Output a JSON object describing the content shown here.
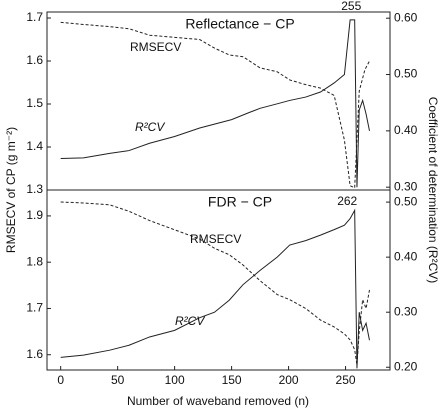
{
  "shared": {
    "xlabel": "Number of waveband removed (n)",
    "ylabel": "RMSECV of CP (g m⁻²)",
    "y2label": "Coefficient of determination (R²CV)"
  },
  "chart_data": [
    {
      "type": "line",
      "title": "Reflectance − CP",
      "xlim": [
        -12,
        289
      ],
      "ylim": [
        1.3,
        1.714
      ],
      "yticks": [
        1.3,
        1.4,
        1.5,
        1.6,
        1.7
      ],
      "y2lim": [
        0.295,
        0.611
      ],
      "y2ticks": [
        {
          "value": 0.3,
          "label": "0.30"
        },
        {
          "value": 0.4,
          "label": "0.40"
        },
        {
          "value": 0.5,
          "label": "0.50"
        },
        {
          "value": 0.6,
          "label": "0.60"
        }
      ],
      "annotations": [
        {
          "text": "255",
          "x": 255
        }
      ],
      "series": [
        {
          "name": "RMSECV",
          "color": "#222",
          "dash": true,
          "x": [
            0,
            20,
            43,
            60,
            78,
            100,
            122,
            135,
            148,
            160,
            175,
            190,
            201,
            215,
            228,
            240,
            249,
            254,
            258,
            262,
            267,
            271
          ],
          "values": [
            1.69,
            1.685,
            1.68,
            1.675,
            1.66,
            1.655,
            1.65,
            1.63,
            1.614,
            1.61,
            1.584,
            1.575,
            1.556,
            1.545,
            1.537,
            1.52,
            1.416,
            1.31,
            1.305,
            1.53,
            1.58,
            1.6
          ]
        },
        {
          "name": "R²CV",
          "color": "#222",
          "dash": false,
          "axis": "y2",
          "x": [
            0,
            20,
            43,
            60,
            78,
            100,
            122,
            150,
            166,
            175,
            190,
            201,
            215,
            228,
            240,
            249,
            254,
            258,
            260,
            262,
            265,
            268,
            271
          ],
          "values": [
            0.351,
            0.352,
            0.36,
            0.365,
            0.378,
            0.39,
            0.405,
            0.42,
            0.433,
            0.44,
            0.448,
            0.454,
            0.46,
            0.469,
            0.485,
            0.5,
            0.597,
            0.597,
            0.3,
            0.437,
            0.454,
            0.43,
            0.4
          ]
        }
      ]
    },
    {
      "type": "line",
      "title": "FDR − CP",
      "xlim": [
        -12,
        289
      ],
      "ylim": [
        1.567,
        1.956
      ],
      "yticks": [
        1.6,
        1.7,
        1.8,
        1.9
      ],
      "y2lim": [
        0.195,
        0.522
      ],
      "y2ticks": [
        {
          "value": 0.2,
          "label": "0.20"
        },
        {
          "value": 0.3,
          "label": "0.30"
        },
        {
          "value": 0.4,
          "label": "0.40"
        },
        {
          "value": 0.5,
          "label": "0.50"
        }
      ],
      "xticks": [
        0,
        50,
        100,
        150,
        200,
        250
      ],
      "annotations": [
        {
          "text": "262",
          "x": 262
        }
      ],
      "series": [
        {
          "name": "RMSECV",
          "color": "#222",
          "dash": true,
          "x": [
            0,
            20,
            43,
            60,
            78,
            100,
            122,
            135,
            148,
            160,
            175,
            190,
            201,
            215,
            228,
            240,
            249,
            254,
            258,
            260,
            262,
            265,
            268,
            271
          ],
          "values": [
            1.93,
            1.928,
            1.924,
            1.91,
            1.89,
            1.87,
            1.85,
            1.83,
            1.816,
            1.794,
            1.76,
            1.73,
            1.719,
            1.7,
            1.675,
            1.66,
            1.645,
            1.632,
            1.611,
            1.578,
            1.65,
            1.719,
            1.7,
            1.74
          ]
        },
        {
          "name": "R²CV",
          "color": "#222",
          "dash": false,
          "axis": "y2",
          "x": [
            0,
            20,
            43,
            60,
            78,
            100,
            122,
            135,
            148,
            160,
            175,
            190,
            201,
            215,
            228,
            240,
            249,
            254,
            258,
            260,
            262,
            265,
            268,
            271
          ],
          "values": [
            0.218,
            0.222,
            0.231,
            0.24,
            0.255,
            0.267,
            0.29,
            0.3,
            0.322,
            0.35,
            0.376,
            0.4,
            0.422,
            0.43,
            0.44,
            0.45,
            0.458,
            0.47,
            0.485,
            0.198,
            0.3,
            0.267,
            0.28,
            0.249
          ]
        }
      ]
    }
  ]
}
